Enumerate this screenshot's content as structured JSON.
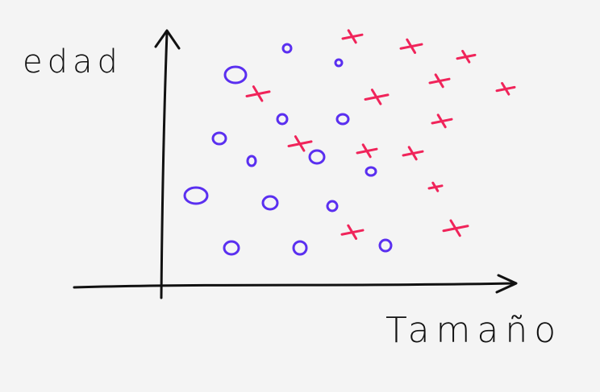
{
  "axes": {
    "y_label": "edad",
    "x_label": "Tamaño"
  }
}
